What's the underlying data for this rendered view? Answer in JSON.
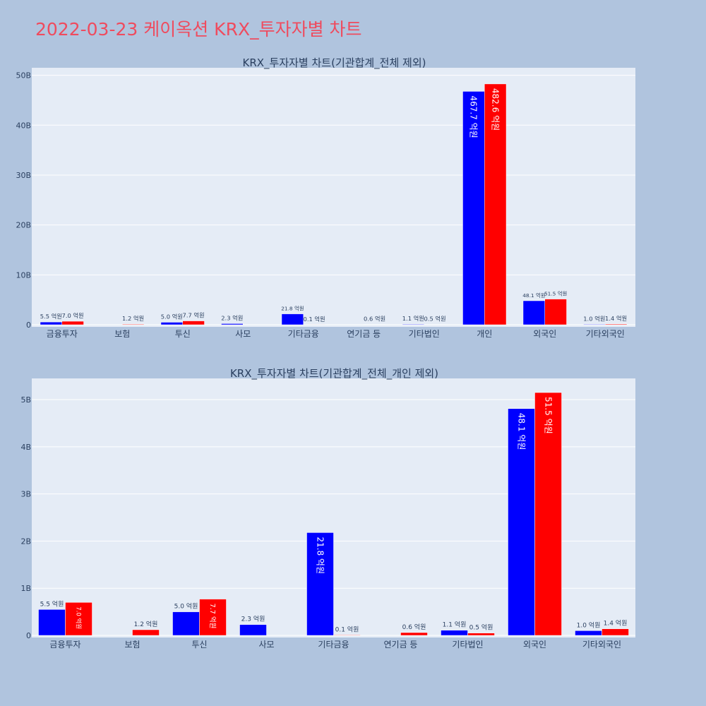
{
  "page": {
    "title": "2022-03-23 케이옥션 KRX_투자자별 차트"
  },
  "colors": {
    "page_bg": "#b0c4de",
    "plot_bg": "#e5ecf6",
    "sell": "#0000ff",
    "buy": "#ff0000",
    "title": "#ef4b5e",
    "text": "#2a3f5f"
  },
  "chart_data": [
    {
      "type": "bar",
      "title": "KRX_투자자별 차트(기관합계_전체 제외)",
      "categories": [
        "금융투자",
        "보험",
        "투신",
        "사모",
        "기타금융",
        "연기금 등",
        "기타법인",
        "개인",
        "외국인",
        "기타외국인"
      ],
      "series": [
        {
          "color": "#0000ff",
          "values": [
            0.55,
            0,
            0.5,
            0.23,
            2.18,
            0,
            0.11,
            46.77,
            4.81,
            0.1
          ],
          "labels": [
            "5.5 억원",
            "",
            "5.0 억원",
            "2.3 억원",
            "21.8 억원",
            "",
            "1.1 억원",
            "467.7 억원",
            "48.1 억원",
            "1.0 억원"
          ]
        },
        {
          "color": "#ff0000",
          "values": [
            0.7,
            0.12,
            0.77,
            0,
            0.01,
            0.06,
            0.05,
            48.26,
            5.15,
            0.14
          ],
          "labels": [
            "7.0 억원",
            "1.2 억원",
            "7.7 억원",
            "",
            "0.1 억원",
            "0.6 억원",
            "0.5 억원",
            "482.6 억원",
            "51.5 억원",
            "1.4 억원"
          ]
        }
      ],
      "y_unit": "B",
      "yticks": [
        0,
        10,
        20,
        30,
        40,
        50
      ],
      "ytick_labels": [
        "0",
        "10B",
        "20B",
        "30B",
        "40B",
        "50B"
      ],
      "ylim": [
        0,
        51.5
      ],
      "grid": true,
      "legend": "none"
    },
    {
      "type": "bar",
      "title": "KRX_투자자별 차트(기관합계_전체_개인 제외)",
      "categories": [
        "금융투자",
        "보험",
        "투신",
        "사모",
        "기타금융",
        "연기금 등",
        "기타법인",
        "외국인",
        "기타외국인"
      ],
      "series": [
        {
          "color": "#0000ff",
          "values": [
            0.55,
            0,
            0.5,
            0.23,
            2.18,
            0,
            0.11,
            4.81,
            0.1
          ],
          "labels": [
            "5.5 억원",
            "",
            "5.0 억원",
            "2.3 억원",
            "21.8 억원",
            "",
            "1.1 억원",
            "48.1 억원",
            "1.0 억원"
          ]
        },
        {
          "color": "#ff0000",
          "values": [
            0.7,
            0.12,
            0.77,
            0,
            0.01,
            0.06,
            0.05,
            5.15,
            0.14
          ],
          "labels": [
            "7.0 억원",
            "1.2 억원",
            "7.7 억원",
            "",
            "0.1 억원",
            "0.6 억원",
            "0.5 억원",
            "51.5 억원",
            "1.4 억원"
          ]
        }
      ],
      "y_unit": "B",
      "yticks": [
        0,
        1,
        2,
        3,
        4,
        5
      ],
      "ytick_labels": [
        "0",
        "1B",
        "2B",
        "3B",
        "4B",
        "5B"
      ],
      "ylim": [
        0,
        5.45
      ],
      "grid": true,
      "legend": "none"
    }
  ]
}
